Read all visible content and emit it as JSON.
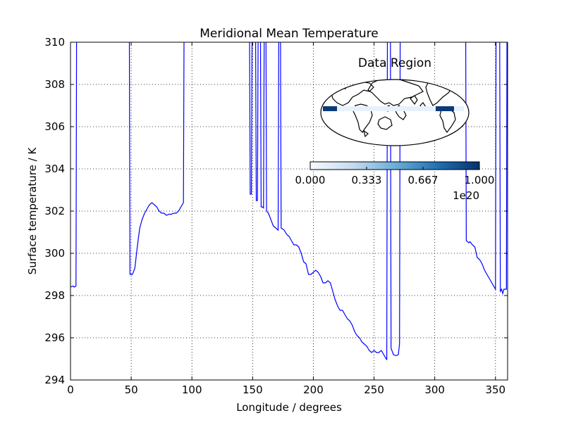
{
  "chart_data": {
    "type": "line",
    "title": "Meridional Mean Temperature",
    "xlabel": "Longitude / degrees",
    "ylabel": "Surface temperature / K",
    "xlim": [
      0,
      360
    ],
    "ylim": [
      294,
      310
    ],
    "grid": true,
    "xticks": [
      0,
      50,
      100,
      150,
      200,
      250,
      300,
      350
    ],
    "yticks": [
      294,
      296,
      298,
      300,
      302,
      304,
      306,
      308,
      310
    ],
    "series": [
      {
        "color": "#0000ff",
        "segments": [
          [
            [
              0,
              298.4
            ],
            [
              2,
              298.45
            ],
            [
              3,
              298.4
            ],
            [
              4.5,
              298.45
            ],
            [
              5,
              310
            ]
          ],
          [
            [
              48.5,
              310
            ],
            [
              49,
              299
            ],
            [
              51,
              299
            ],
            [
              53,
              299.3
            ],
            [
              55,
              300.3
            ],
            [
              57,
              301.2
            ],
            [
              59,
              301.6
            ],
            [
              61,
              301.9
            ],
            [
              63,
              302.1
            ],
            [
              65,
              302.3
            ],
            [
              67,
              302.4
            ],
            [
              69,
              302.3
            ],
            [
              71,
              302.2
            ],
            [
              73,
              302
            ],
            [
              75,
              301.9
            ],
            [
              77,
              301.9
            ],
            [
              79,
              301.8
            ],
            [
              81,
              301.85
            ],
            [
              83,
              301.85
            ],
            [
              85,
              301.9
            ],
            [
              87,
              301.9
            ],
            [
              89,
              302
            ],
            [
              91,
              302.2
            ],
            [
              93,
              302.4
            ],
            [
              93.5,
              310
            ]
          ],
          [
            [
              147.5,
              310
            ],
            [
              148,
              302.8
            ],
            [
              149,
              302.8
            ],
            [
              149.5,
              310
            ]
          ],
          [
            [
              152.5,
              310
            ],
            [
              153,
              302.5
            ],
            [
              154,
              302.5
            ],
            [
              154.5,
              310
            ]
          ],
          [
            [
              156.5,
              310
            ],
            [
              157,
              302.2
            ],
            [
              158,
              302.2
            ],
            [
              159,
              302.15
            ],
            [
              159.5,
              310
            ]
          ],
          [
            [
              161,
              310
            ],
            [
              161.5,
              302
            ],
            [
              163,
              301.9
            ],
            [
              165,
              301.6
            ],
            [
              167,
              301.3
            ],
            [
              169,
              301.2
            ],
            [
              171,
              301.1
            ],
            [
              171.5,
              310
            ]
          ],
          [
            [
              173,
              310
            ],
            [
              173.5,
              301.2
            ],
            [
              176,
              301.1
            ],
            [
              178,
              300.9
            ],
            [
              180,
              300.8
            ],
            [
              182,
              300.6
            ],
            [
              184,
              300.4
            ],
            [
              186,
              300.4
            ],
            [
              188,
              300.3
            ],
            [
              190,
              300
            ],
            [
              192,
              299.6
            ],
            [
              194,
              299.5
            ],
            [
              196,
              299
            ],
            [
              198,
              299
            ],
            [
              200,
              299.1
            ],
            [
              202,
              299.2
            ],
            [
              204,
              299.1
            ],
            [
              206,
              298.9
            ],
            [
              208,
              298.6
            ],
            [
              210,
              298.6
            ],
            [
              212,
              298.7
            ],
            [
              214,
              298.6
            ],
            [
              216,
              298.2
            ],
            [
              218,
              297.8
            ],
            [
              220,
              297.5
            ],
            [
              222,
              297.3
            ],
            [
              224,
              297.3
            ],
            [
              226,
              297.1
            ],
            [
              228,
              296.9
            ],
            [
              230,
              296.8
            ],
            [
              232,
              296.6
            ],
            [
              234,
              296.3
            ],
            [
              236,
              296.1
            ],
            [
              238,
              296
            ],
            [
              240,
              295.8
            ],
            [
              242,
              295.7
            ],
            [
              244,
              295.6
            ],
            [
              246,
              295.4
            ],
            [
              248,
              295.3
            ],
            [
              250,
              295.4
            ],
            [
              252,
              295.3
            ],
            [
              254,
              295.3
            ],
            [
              256,
              295.4
            ],
            [
              258,
              295.2
            ],
            [
              260,
              295
            ],
            [
              260.5,
              294.95
            ],
            [
              261,
              310
            ]
          ],
          [
            [
              263.5,
              310
            ],
            [
              264,
              295.5
            ],
            [
              266,
              295.2
            ],
            [
              268,
              295.15
            ],
            [
              270,
              295.2
            ],
            [
              271,
              295.7
            ],
            [
              271.5,
              310
            ]
          ],
          [
            [
              325.5,
              310
            ],
            [
              326,
              300.6
            ],
            [
              328,
              300.5
            ],
            [
              329,
              300.55
            ],
            [
              331,
              300.4
            ],
            [
              333,
              300.3
            ],
            [
              335,
              299.8
            ],
            [
              337,
              299.7
            ],
            [
              339,
              299.5
            ],
            [
              341,
              299.2
            ],
            [
              343,
              299
            ],
            [
              345,
              298.8
            ],
            [
              347,
              298.6
            ],
            [
              349,
              298.4
            ],
            [
              350,
              298.3
            ],
            [
              350.5,
              310
            ]
          ],
          [
            [
              353.5,
              310
            ],
            [
              354,
              298.2
            ],
            [
              355,
              298.3
            ],
            [
              356,
              298.1
            ],
            [
              357,
              298.3
            ],
            [
              358,
              298.3
            ],
            [
              359,
              298.3
            ],
            [
              359.5,
              310
            ]
          ]
        ]
      }
    ]
  },
  "inset": {
    "title": "Data Region",
    "colorbar": {
      "ticks": [
        "0.000",
        "0.333",
        "0.667",
        "1.000"
      ],
      "offset_label": "1e20",
      "color_low": "#f7fbff",
      "color_high": "#08306b"
    }
  }
}
